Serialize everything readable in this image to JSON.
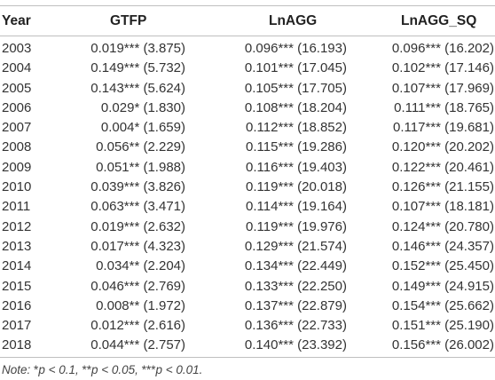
{
  "table": {
    "headers": [
      "Year",
      "GTFP",
      "LnAGG",
      "LnAGG_SQ"
    ],
    "rows": [
      [
        "2003",
        "0.019*** (3.875)",
        "0.096*** (16.193)",
        "0.096*** (16.202)"
      ],
      [
        "2004",
        "0.149*** (5.732)",
        "0.101*** (17.045)",
        "0.102*** (17.146)"
      ],
      [
        "2005",
        "0.143*** (5.624)",
        "0.105*** (17.705)",
        "0.107*** (17.969)"
      ],
      [
        "2006",
        "0.029* (1.830)",
        "0.108*** (18.204)",
        "0.111*** (18.765)"
      ],
      [
        "2007",
        "0.004* (1.659)",
        "0.112*** (18.852)",
        "0.117*** (19.681)"
      ],
      [
        "2008",
        "0.056** (2.229)",
        "0.115*** (19.286)",
        "0.120*** (20.202)"
      ],
      [
        "2009",
        "0.051** (1.988)",
        "0.116*** (19.403)",
        "0.122*** (20.461)"
      ],
      [
        "2010",
        "0.039*** (3.826)",
        "0.119*** (20.018)",
        "0.126*** (21.155)"
      ],
      [
        "2011",
        "0.063*** (3.471)",
        "0.114*** (19.164)",
        "0.107*** (18.181)"
      ],
      [
        "2012",
        "0.019*** (2.632)",
        "0.119*** (19.976)",
        "0.124*** (20.780)"
      ],
      [
        "2013",
        "0.017*** (4.323)",
        "0.129*** (21.574)",
        "0.146*** (24.357)"
      ],
      [
        "2014",
        "0.034** (2.204)",
        "0.134*** (22.449)",
        "0.152*** (25.450)"
      ],
      [
        "2015",
        "0.046*** (2.769)",
        "0.133*** (22.250)",
        "0.149*** (24.915)"
      ],
      [
        "2016",
        "0.008** (1.972)",
        "0.137*** (22.879)",
        "0.154*** (25.662)"
      ],
      [
        "2017",
        "0.012*** (2.616)",
        "0.136*** (22.733)",
        "0.151*** (25.190)"
      ],
      [
        "2018",
        "0.044*** (2.757)",
        "0.140*** (23.392)",
        "0.156*** (26.002)"
      ]
    ]
  },
  "note": {
    "label": "Note:",
    "p1_stars": "*",
    "p1_text": "p < 0.1,",
    "p2_stars": "**",
    "p2_text": "p < 0.05,",
    "p3_stars": "***",
    "p3_text": "p < 0.01."
  }
}
